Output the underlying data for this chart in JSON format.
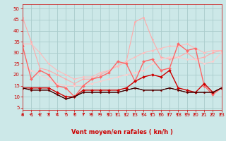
{
  "bg_color": "#cce8e8",
  "grid_color": "#aacccc",
  "xlabel": "Vent moyen/en rafales ( kn/h )",
  "x_ticks": [
    0,
    1,
    2,
    3,
    4,
    5,
    6,
    7,
    8,
    9,
    10,
    11,
    12,
    13,
    14,
    15,
    16,
    17,
    18,
    19,
    20,
    21,
    22,
    23
  ],
  "y_ticks": [
    5,
    10,
    15,
    20,
    25,
    30,
    35,
    40,
    45,
    50
  ],
  "ylim": [
    4,
    52
  ],
  "xlim": [
    0,
    23
  ],
  "series": [
    {
      "x": [
        0,
        1,
        2,
        3,
        4,
        5,
        6,
        7,
        8,
        9,
        10,
        11,
        12,
        13,
        14,
        15,
        16,
        17,
        18,
        19,
        20,
        21,
        22,
        23
      ],
      "y": [
        46,
        35,
        23,
        22,
        20,
        18,
        16,
        18,
        18,
        20,
        22,
        24,
        26,
        44,
        46,
        36,
        28,
        27,
        28,
        30,
        27,
        28,
        30,
        31
      ],
      "color": "#ffaaaa",
      "lw": 0.8,
      "marker": "D",
      "ms": 1.5
    },
    {
      "x": [
        0,
        1,
        2,
        3,
        4,
        5,
        6,
        7,
        8,
        9,
        10,
        11,
        12,
        13,
        14,
        15,
        16,
        17,
        18,
        19,
        20,
        21,
        22,
        23
      ],
      "y": [
        34,
        34,
        30,
        25,
        22,
        20,
        18,
        19,
        19,
        21,
        22,
        24,
        26,
        28,
        30,
        31,
        32,
        33,
        33,
        34,
        32,
        30,
        31,
        31
      ],
      "color": "#ffbbbb",
      "lw": 0.8,
      "marker": "D",
      "ms": 1.5
    },
    {
      "x": [
        0,
        1,
        2,
        3,
        4,
        5,
        6,
        7,
        8,
        9,
        10,
        11,
        12,
        13,
        14,
        15,
        16,
        17,
        18,
        19,
        20,
        21,
        22,
        23
      ],
      "y": [
        24,
        22,
        20,
        18,
        16,
        15,
        15,
        15,
        16,
        17,
        18,
        19,
        20,
        21,
        22,
        25,
        27,
        28,
        28,
        27,
        27,
        25,
        26,
        30
      ],
      "color": "#ffcccc",
      "lw": 0.8,
      "marker": "D",
      "ms": 1.5
    },
    {
      "x": [
        0,
        1,
        2,
        3,
        4,
        5,
        6,
        7,
        8,
        9,
        10,
        11,
        12,
        13,
        14,
        15,
        16,
        17,
        18,
        19,
        20,
        21,
        22,
        23
      ],
      "y": [
        33,
        18,
        22,
        20,
        15,
        14,
        10,
        15,
        18,
        19,
        21,
        26,
        25,
        17,
        26,
        27,
        22,
        23,
        34,
        31,
        32,
        15,
        11,
        14
      ],
      "color": "#ff6666",
      "lw": 1.0,
      "marker": "D",
      "ms": 2.0
    },
    {
      "x": [
        0,
        1,
        2,
        3,
        4,
        5,
        6,
        7,
        8,
        9,
        10,
        11,
        12,
        13,
        14,
        15,
        16,
        17,
        18,
        19,
        20,
        21,
        22,
        23
      ],
      "y": [
        14,
        14,
        14,
        14,
        12,
        10,
        10,
        13,
        13,
        13,
        13,
        13,
        14,
        17,
        19,
        20,
        19,
        22,
        14,
        13,
        12,
        16,
        12,
        14
      ],
      "color": "#cc0000",
      "lw": 1.0,
      "marker": "D",
      "ms": 2.0
    },
    {
      "x": [
        0,
        1,
        2,
        3,
        4,
        5,
        6,
        7,
        8,
        9,
        10,
        11,
        12,
        13,
        14,
        15,
        16,
        17,
        18,
        19,
        20,
        21,
        22,
        23
      ],
      "y": [
        14,
        13,
        13,
        13,
        11,
        9,
        10,
        12,
        12,
        12,
        12,
        12,
        13,
        14,
        13,
        13,
        13,
        14,
        13,
        12,
        12,
        12,
        12,
        14
      ],
      "color": "#880000",
      "lw": 0.8,
      "marker": "D",
      "ms": 1.5
    },
    {
      "x": [
        0,
        1,
        2,
        3,
        4,
        5,
        6,
        7,
        8,
        9,
        10,
        11,
        12,
        13,
        14,
        15,
        16,
        17,
        18,
        19,
        20,
        21,
        22,
        23
      ],
      "y": [
        14,
        13,
        13,
        13,
        11,
        9,
        10,
        12,
        12,
        12,
        12,
        12,
        13,
        14,
        13,
        13,
        13,
        14,
        13,
        12,
        12,
        12,
        12,
        14
      ],
      "color": "#220000",
      "lw": 0.7,
      "marker": null,
      "ms": 0
    }
  ],
  "arrow_angles": [
    0,
    15,
    15,
    20,
    25,
    35,
    45,
    50,
    55,
    60,
    65,
    70,
    75,
    80,
    80,
    80,
    80,
    80,
    80,
    80,
    80,
    80,
    80,
    80
  ],
  "arrow_color": "#cc0000",
  "label_color": "#cc0000",
  "tick_fontsize": 5,
  "xlabel_fontsize": 6
}
